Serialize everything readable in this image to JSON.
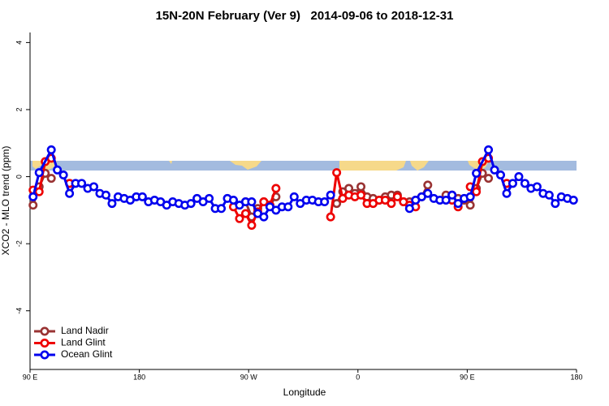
{
  "chart_data": {
    "type": "line",
    "title": "15N-20N February (Ver 9)   2014-09-06 to 2018-12-31",
    "x_label": "Longitude",
    "y_label": "XCO2 - MLO trend (ppm)",
    "xlim": [
      90,
      540
    ],
    "xticks": [
      {
        "value": 90,
        "label": "90 E"
      },
      180,
      {
        "value": 270,
        "label": "90 W"
      },
      {
        "value": 360,
        "label": "0"
      },
      {
        "value": 450,
        "label": "90 E"
      },
      {
        "value": 540,
        "label": "180"
      }
    ],
    "ylim": [
      -5.75,
      4.3
    ],
    "yticks": [
      -4,
      -2,
      0,
      2,
      4
    ],
    "legend": "bottom-left",
    "series": [
      {
        "name": "Land Nadir",
        "color": "#993333",
        "x": [
          92.5,
          97.5,
          102.5,
          107.5,
          null,
          122.5,
          null,
          267.5,
          272.5,
          277.5,
          282.5,
          287.5,
          292.5,
          null,
          342.5,
          347.5,
          352.5,
          357.5,
          362.5,
          367.5,
          372.5,
          377.5,
          382.5,
          387.5,
          392.5,
          397.5,
          402.5,
          407.5,
          412.5,
          417.5,
          null,
          432.5,
          437.5,
          442.5,
          447.5,
          452.5,
          457.5,
          462.5,
          467.5,
          null,
          482.5
        ],
        "values": [
          -0.85,
          -0.3,
          0.1,
          -0.05,
          null,
          -0.2,
          null,
          -0.75,
          -1.2,
          -0.95,
          -0.75,
          -0.85,
          -0.6,
          null,
          -0.8,
          -0.45,
          -0.35,
          -0.5,
          -0.3,
          -0.6,
          -0.65,
          -0.7,
          -0.6,
          -0.55,
          -0.55,
          -0.75,
          -0.75,
          -0.7,
          -0.6,
          -0.25,
          null,
          -0.55,
          -0.55,
          -0.65,
          -0.7,
          -0.85,
          -0.35,
          0.1,
          -0.05,
          null,
          -0.2
        ]
      },
      {
        "name": "Land Glint",
        "color": "#ee0000",
        "x": [
          92.5,
          97.5,
          102.5,
          107.5,
          null,
          122.5,
          null,
          257.5,
          262.5,
          267.5,
          272.5,
          277.5,
          282.5,
          287.5,
          292.5,
          null,
          337.5,
          342.5,
          347.5,
          352.5,
          357.5,
          362.5,
          367.5,
          372.5,
          377.5,
          382.5,
          387.5,
          392.5,
          397.5,
          402.5,
          407.5,
          null,
          437.5,
          442.5,
          null,
          452.5,
          457.5,
          462.5,
          467.5,
          null,
          482.5
        ],
        "values": [
          -0.4,
          -0.45,
          0.45,
          0.55,
          null,
          -0.2,
          null,
          -0.9,
          -1.25,
          -1.1,
          -1.45,
          -1.05,
          -0.75,
          -0.85,
          -0.35,
          null,
          -1.2,
          0.12,
          -0.65,
          -0.55,
          -0.6,
          -0.55,
          -0.8,
          -0.8,
          -0.7,
          -0.7,
          -0.8,
          -0.6,
          -0.75,
          -0.85,
          -0.9,
          null,
          -0.7,
          -0.9,
          null,
          -0.3,
          -0.45,
          0.45,
          0.55,
          null,
          -0.2
        ]
      },
      {
        "name": "Ocean Glint",
        "color": "#0000ee",
        "x": [
          92.5,
          97.5,
          107.5,
          112.5,
          117.5,
          122.5,
          127.5,
          132.5,
          137.5,
          142.5,
          147.5,
          152.5,
          157.5,
          162.5,
          167.5,
          172.5,
          177.5,
          182.5,
          187.5,
          192.5,
          197.5,
          202.5,
          207.5,
          212.5,
          217.5,
          222.5,
          227.5,
          232.5,
          237.5,
          242.5,
          247.5,
          252.5,
          257.5,
          262.5,
          267.5,
          272.5,
          277.5,
          282.5,
          287.5,
          292.5,
          297.5,
          302.5,
          307.5,
          312.5,
          317.5,
          322.5,
          327.5,
          332.5,
          337.5,
          null,
          402.5,
          407.5,
          412.5,
          417.5,
          422.5,
          427.5,
          432.5,
          437.5,
          442.5,
          447.5,
          452.5,
          457.5,
          467.5,
          472.5,
          477.5,
          482.5,
          487.5,
          492.5,
          497.5,
          502.5,
          507.5,
          512.5,
          517.5,
          522.5,
          527.5,
          532.5,
          537.5
        ],
        "values": [
          -0.6,
          0.12,
          0.8,
          0.2,
          0.05,
          -0.5,
          -0.2,
          -0.2,
          -0.35,
          -0.3,
          -0.5,
          -0.55,
          -0.8,
          -0.6,
          -0.65,
          -0.7,
          -0.6,
          -0.6,
          -0.75,
          -0.7,
          -0.75,
          -0.85,
          -0.75,
          -0.8,
          -0.85,
          -0.8,
          -0.65,
          -0.75,
          -0.65,
          -0.95,
          -0.95,
          -0.65,
          -0.7,
          -0.85,
          -0.75,
          -0.75,
          -1.1,
          -1.2,
          -0.9,
          -1.0,
          -0.9,
          -0.9,
          -0.6,
          -0.8,
          -0.7,
          -0.7,
          -0.75,
          -0.75,
          -0.55,
          null,
          -0.95,
          -0.7,
          -0.6,
          -0.5,
          -0.65,
          -0.7,
          -0.7,
          -0.55,
          -0.8,
          -0.65,
          -0.6,
          0.1,
          0.8,
          0.2,
          0.05,
          -0.5,
          -0.2,
          0.0,
          -0.2,
          -0.35,
          -0.3,
          -0.5,
          -0.55,
          -0.8,
          -0.6,
          -0.65,
          -0.7
        ]
      }
    ]
  }
}
